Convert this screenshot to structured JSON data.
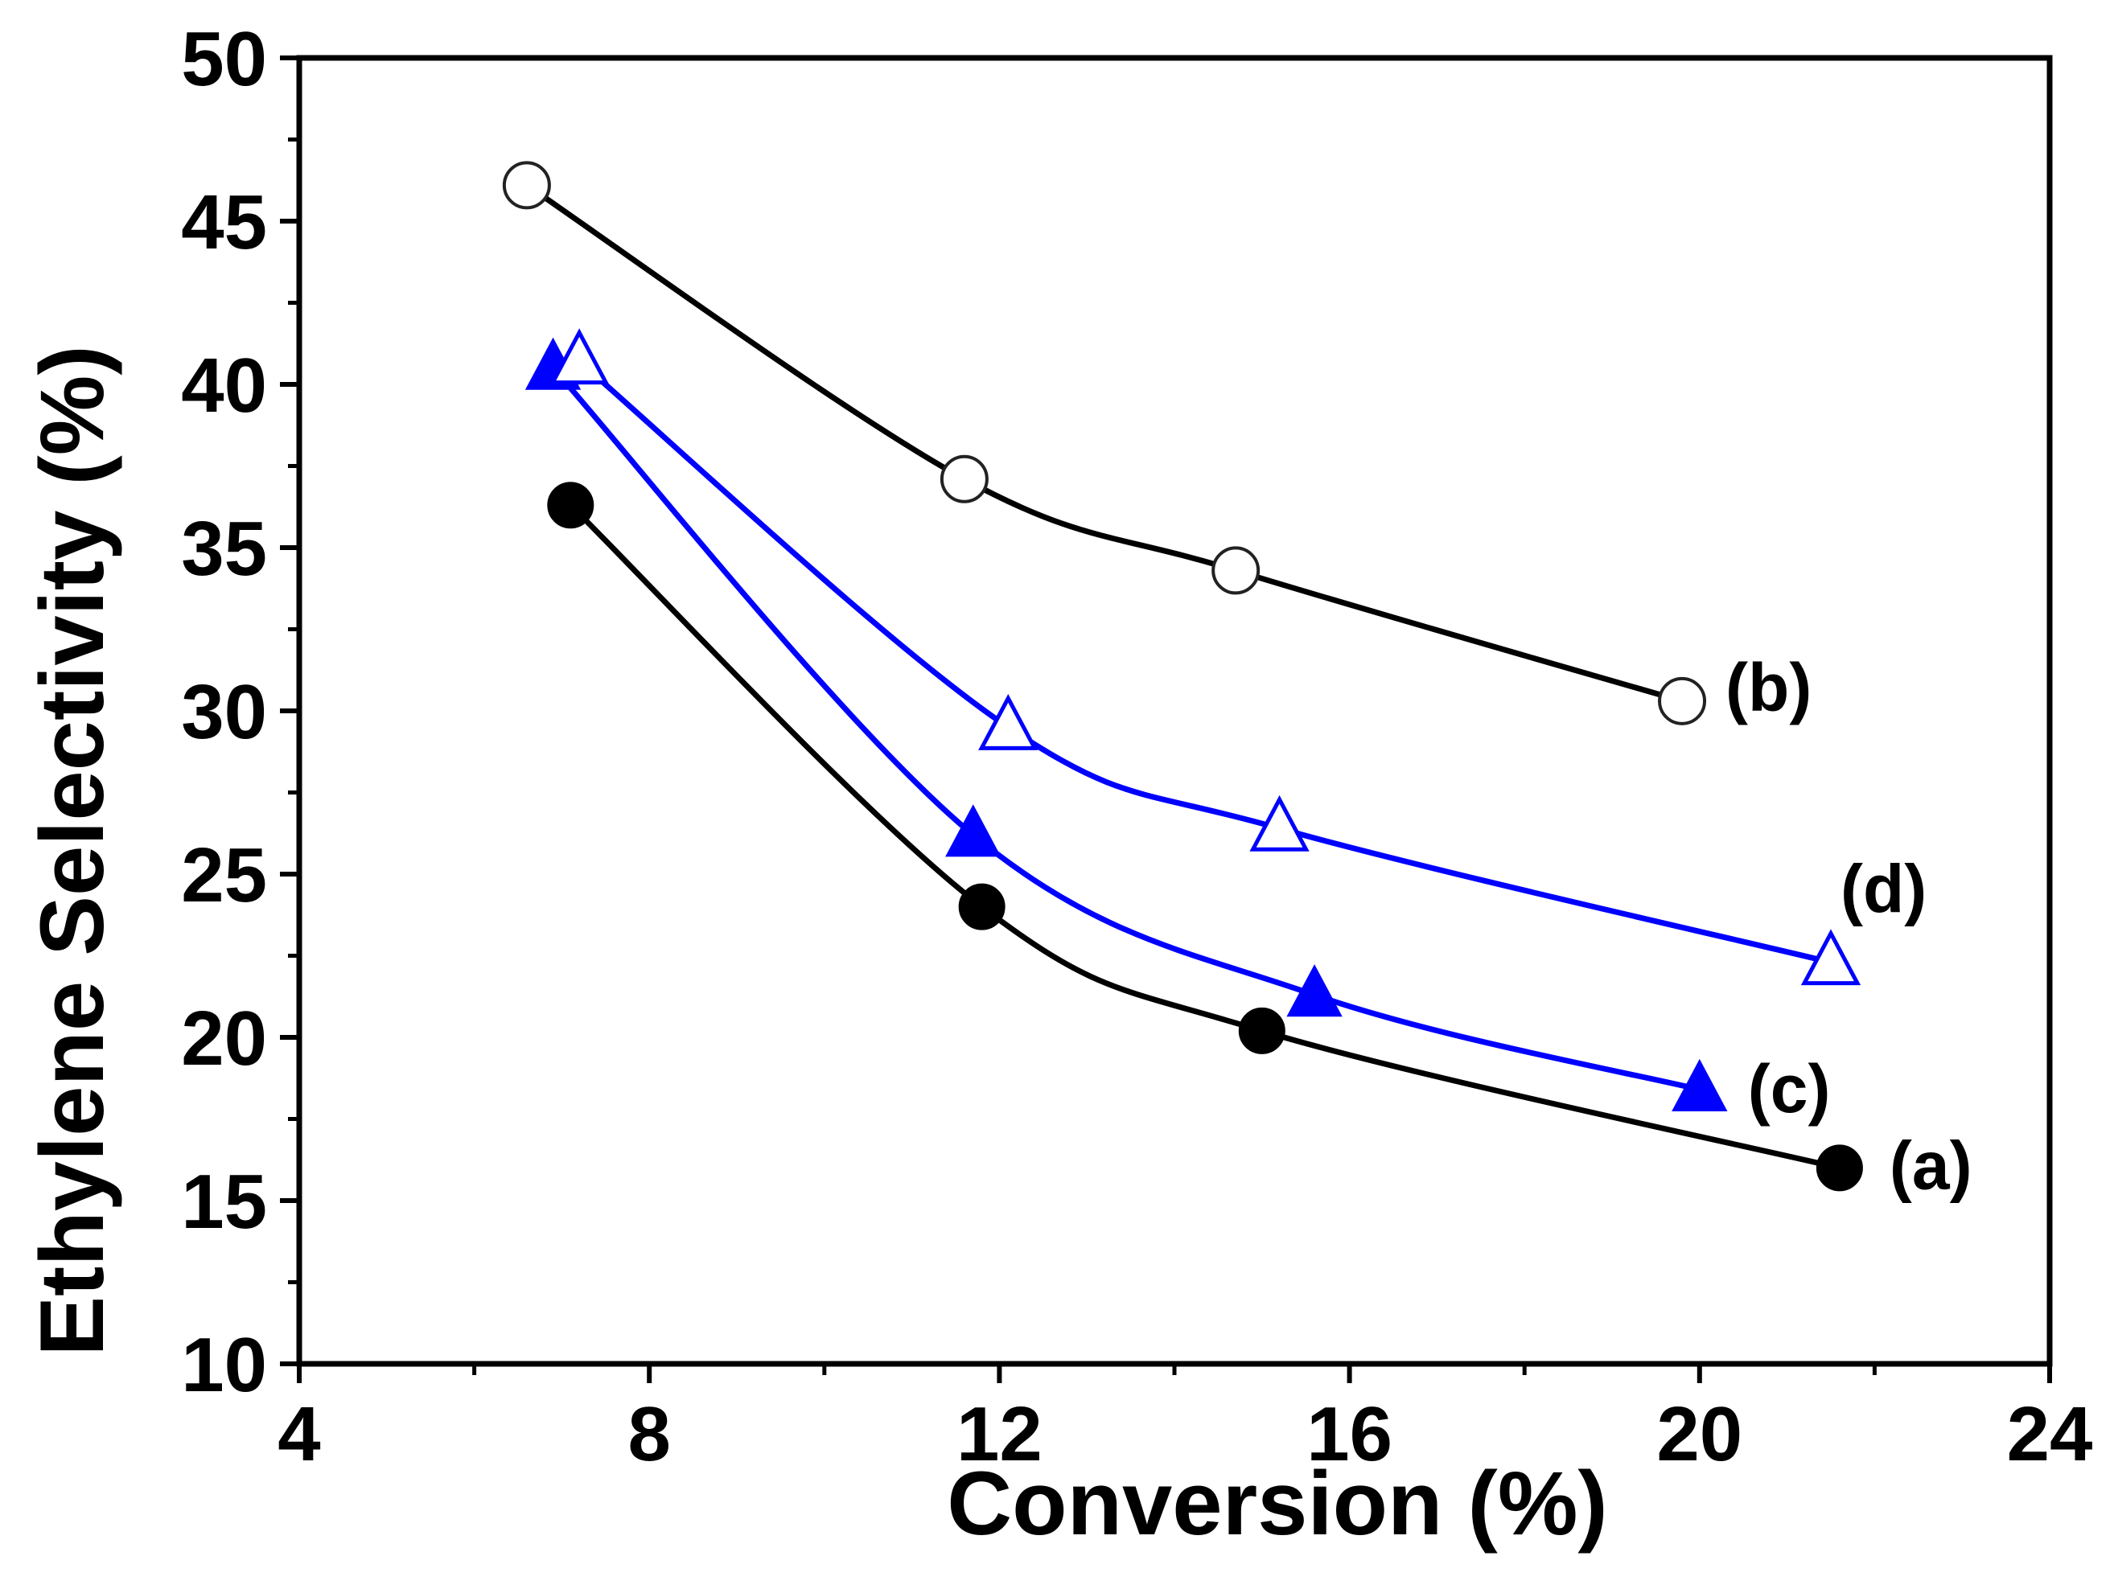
{
  "chart_data": {
    "type": "line",
    "title": "",
    "xlabel": "Conversion (%)",
    "ylabel": "Ethylene Selectivity (%)",
    "xlim": [
      4,
      24
    ],
    "ylim": [
      10,
      50
    ],
    "xticks": [
      4,
      8,
      12,
      16,
      20,
      24
    ],
    "yticks": [
      10,
      15,
      20,
      25,
      30,
      35,
      40,
      45,
      50
    ],
    "grid": false,
    "legend": "inline labels at line ends",
    "series": [
      {
        "name": "(a)",
        "marker": "filled-circle",
        "color": "#000000",
        "x": [
          7.1,
          11.8,
          15.0,
          21.6
        ],
        "y": [
          36.3,
          24.0,
          20.2,
          16.0
        ]
      },
      {
        "name": "(b)",
        "marker": "open-circle",
        "color": "#000000",
        "x": [
          6.6,
          11.6,
          14.7,
          19.8
        ],
        "y": [
          46.1,
          37.1,
          34.3,
          30.3
        ]
      },
      {
        "name": "(c)",
        "marker": "filled-triangle",
        "color": "#0000ff",
        "x": [
          6.9,
          11.7,
          15.6,
          20.0
        ],
        "y": [
          40.5,
          26.2,
          21.3,
          18.4
        ]
      },
      {
        "name": "(d)",
        "marker": "open-triangle",
        "color": "#0000ff",
        "x": [
          7.2,
          12.1,
          15.2,
          21.5
        ],
        "y": [
          40.7,
          29.5,
          26.4,
          22.3
        ]
      }
    ]
  }
}
